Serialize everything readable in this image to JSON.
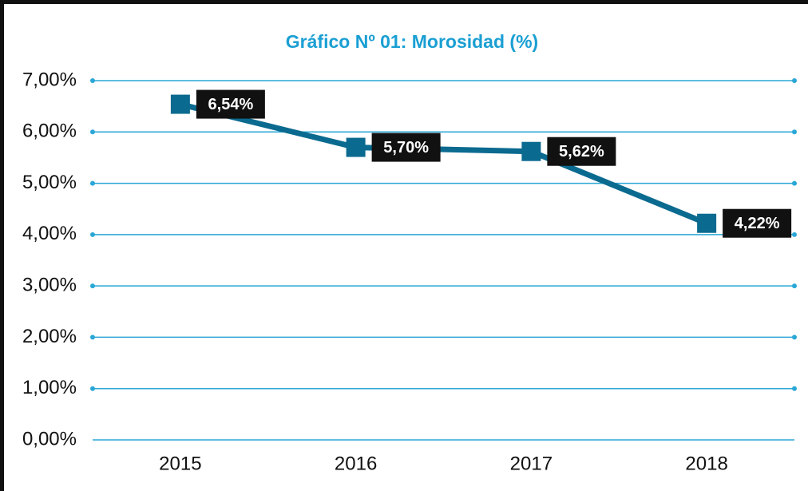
{
  "chart_data": {
    "type": "line",
    "title": "Gráfico Nº 01: Morosidad (%)",
    "categories": [
      "2015",
      "2016",
      "2017",
      "2018"
    ],
    "values": [
      6.54,
      5.7,
      5.62,
      4.22
    ],
    "value_labels": [
      "6,54%",
      "5,70%",
      "5,62%",
      "4,22%"
    ],
    "color": "#0b6a8f",
    "grid_color": "#2aa7d6",
    "ylim": [
      0,
      7
    ],
    "yticks": [
      {
        "value": 0,
        "label": "0,00%"
      },
      {
        "value": 1,
        "label": "1,00%"
      },
      {
        "value": 2,
        "label": "2,00%"
      },
      {
        "value": 3,
        "label": "3,00%"
      },
      {
        "value": 4,
        "label": "4,00%"
      },
      {
        "value": 5,
        "label": "5,00%"
      },
      {
        "value": 6,
        "label": "6,00%"
      },
      {
        "value": 7,
        "label": "7,00%"
      }
    ],
    "grid": true
  }
}
